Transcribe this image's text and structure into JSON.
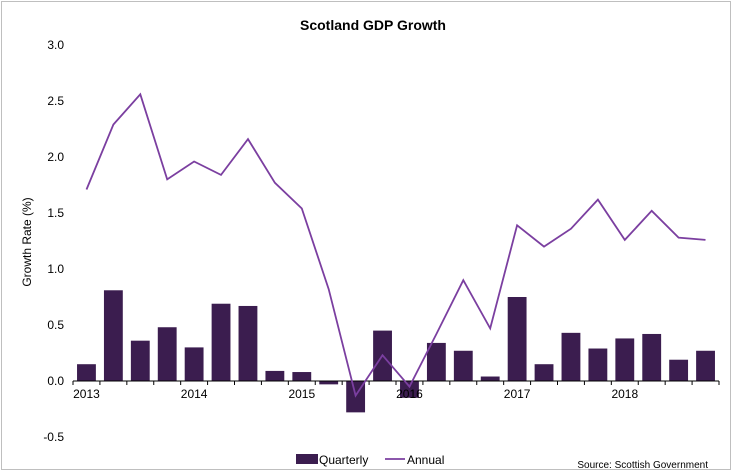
{
  "chart_data": {
    "type": "bar+line",
    "title": "Scotland GDP Growth",
    "ylabel": "Growth Rate (%)",
    "xlabel": "",
    "ylim": [
      -0.5,
      3.0
    ],
    "yticks": [
      "3.0",
      "2.5",
      "2.0",
      "1.5",
      "1.0",
      "0.5",
      "0.0",
      "-0.5"
    ],
    "ytick_values": [
      3.0,
      2.5,
      2.0,
      1.5,
      1.0,
      0.5,
      0.0,
      -0.5
    ],
    "year_labels": [
      "2013",
      "2014",
      "2015",
      "2016",
      "2017",
      "2018"
    ],
    "colors": {
      "quarterly": "#3b1d4f",
      "annual": "#7b3fa0"
    },
    "series": [
      {
        "name": "Quarterly",
        "kind": "bar",
        "values": [
          0.15,
          0.81,
          0.36,
          0.48,
          0.3,
          0.69,
          0.67,
          0.09,
          0.08,
          -0.03,
          -0.28,
          0.45,
          -0.15,
          0.34,
          0.27,
          0.04,
          0.75,
          0.15,
          0.43,
          0.29,
          0.38,
          0.42,
          0.19,
          0.27
        ]
      },
      {
        "name": "Annual",
        "kind": "line",
        "values": [
          1.71,
          2.29,
          2.56,
          1.8,
          1.96,
          1.84,
          2.16,
          1.77,
          1.54,
          0.82,
          -0.13,
          0.23,
          -0.05,
          0.42,
          0.9,
          0.47,
          1.39,
          1.2,
          1.36,
          1.62,
          1.26,
          1.52,
          1.28,
          1.26
        ]
      }
    ],
    "legend": {
      "placement": "bottom",
      "items": [
        "Quarterly",
        "Annual"
      ]
    },
    "source": "Source: Scottish Government",
    "grid": false
  }
}
